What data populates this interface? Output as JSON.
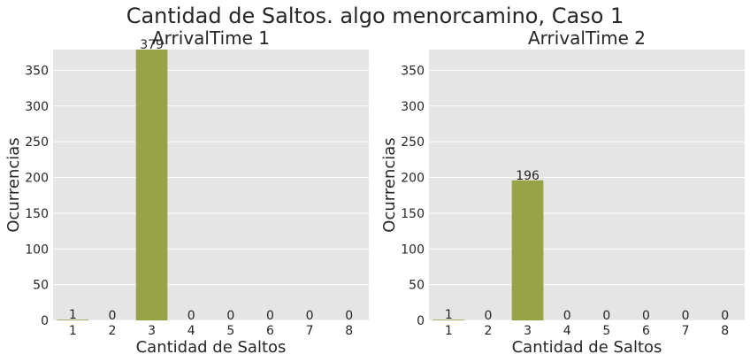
{
  "figure": {
    "title": "Cantidad de Saltos. algo menorcamino, Caso 1",
    "bar_color": "#98a348",
    "panel_bg": "#e5e5e5"
  },
  "chart_data": [
    {
      "type": "bar",
      "title": "ArrivalTime 1",
      "xlabel": "Cantidad de Saltos",
      "ylabel": "Ocurrencias",
      "categories": [
        "1",
        "2",
        "3",
        "4",
        "5",
        "6",
        "7",
        "8"
      ],
      "values": [
        1,
        0,
        379,
        0,
        0,
        0,
        0,
        0
      ],
      "data_labels": [
        "1",
        "0",
        "379",
        "0",
        "0",
        "0",
        "0",
        "0"
      ],
      "yticks": [
        0,
        50,
        100,
        150,
        200,
        250,
        300,
        350
      ],
      "ylim": [
        0,
        379
      ],
      "grid": true,
      "legend": "none"
    },
    {
      "type": "bar",
      "title": "ArrivalTime 2",
      "xlabel": "Cantidad de Saltos",
      "ylabel": "Ocurrencias",
      "categories": [
        "1",
        "2",
        "3",
        "4",
        "5",
        "6",
        "7",
        "8"
      ],
      "values": [
        1,
        0,
        196,
        0,
        0,
        0,
        0,
        0
      ],
      "data_labels": [
        "1",
        "0",
        "196",
        "0",
        "0",
        "0",
        "0",
        "0"
      ],
      "yticks": [
        0,
        50,
        100,
        150,
        200,
        250,
        300,
        350
      ],
      "ylim": [
        0,
        379
      ],
      "grid": true,
      "legend": "none"
    }
  ]
}
